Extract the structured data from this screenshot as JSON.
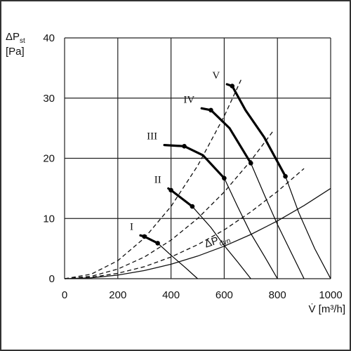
{
  "chart_data": {
    "type": "fan-curves",
    "y_label": {
      "text": "ΔP",
      "subscript": "st",
      "unit": "[Pa]"
    },
    "x_label": "V̇ [m³/h]",
    "xlim": [
      0,
      1000
    ],
    "xticks": [
      0,
      200,
      400,
      600,
      800,
      1000
    ],
    "ylim": [
      0,
      40
    ],
    "yticks": [
      0,
      10,
      20,
      30,
      40
    ],
    "grid": true,
    "series": [
      {
        "name": "I",
        "color": "#000000",
        "x": [
          285,
          300,
          350,
          400,
          450,
          500
        ],
        "values": [
          7.2,
          7.0,
          5.9,
          3.9,
          2.0,
          0
        ],
        "operating_x": [
          300,
          350
        ],
        "operating_values": [
          7.0,
          5.9
        ]
      },
      {
        "name": "II",
        "color": "#000000",
        "x": [
          390,
          400,
          480,
          550,
          600,
          650,
          700
        ],
        "values": [
          15,
          14.7,
          12,
          8.5,
          5.5,
          2.8,
          0
        ],
        "operating_x": [
          400,
          480
        ],
        "operating_values": [
          14.7,
          12
        ]
      },
      {
        "name": "III",
        "color": "#000000",
        "x": [
          375,
          450,
          520,
          600,
          650,
          700,
          750,
          800
        ],
        "values": [
          22.2,
          22,
          20.5,
          16.7,
          12,
          7.5,
          3.8,
          0
        ],
        "operating_x": [
          450,
          600
        ],
        "operating_values": [
          22,
          16.7
        ]
      },
      {
        "name": "IV",
        "color": "#000000",
        "x": [
          515,
          550,
          620,
          700,
          750,
          800,
          850,
          900
        ],
        "values": [
          28.3,
          28,
          25,
          19.2,
          14,
          9,
          4.5,
          0
        ],
        "operating_x": [
          550,
          700
        ],
        "operating_values": [
          28,
          19.2
        ]
      },
      {
        "name": "V",
        "color": "#000000",
        "x": [
          610,
          630,
          680,
          750,
          830,
          880,
          940,
          1000
        ],
        "values": [
          32.3,
          32,
          28,
          23.5,
          17,
          11,
          5,
          0
        ],
        "operating_x": [
          630,
          830
        ],
        "operating_values": [
          32,
          17
        ]
      }
    ],
    "system_curves": [
      {
        "x": [
          0,
          100,
          200,
          300,
          400,
          500,
          600,
          665
        ],
        "values": [
          0,
          0.75,
          3,
          6.75,
          12,
          18.75,
          27,
          33.2
        ]
      },
      {
        "x": [
          0,
          100,
          200,
          300,
          400,
          500,
          600,
          700,
          785
        ],
        "values": [
          0,
          0.4,
          1.6,
          3.6,
          6.4,
          10,
          14.4,
          19.6,
          24.6
        ]
      },
      {
        "x": [
          0,
          100,
          200,
          300,
          400,
          500,
          600,
          700,
          800,
          900
        ],
        "values": [
          0,
          0.23,
          0.9,
          2.0,
          3.6,
          5.65,
          8.1,
          11.1,
          14.5,
          18.3
        ]
      }
    ],
    "dynamic_curve": {
      "name": "ΔP",
      "subscript": "dyn",
      "x": [
        0,
        100,
        200,
        300,
        400,
        500,
        600,
        700,
        800,
        900,
        1000
      ],
      "values": [
        0,
        0.15,
        0.6,
        1.35,
        2.4,
        3.75,
        5.4,
        7.35,
        9.6,
        12.15,
        15
      ]
    }
  }
}
